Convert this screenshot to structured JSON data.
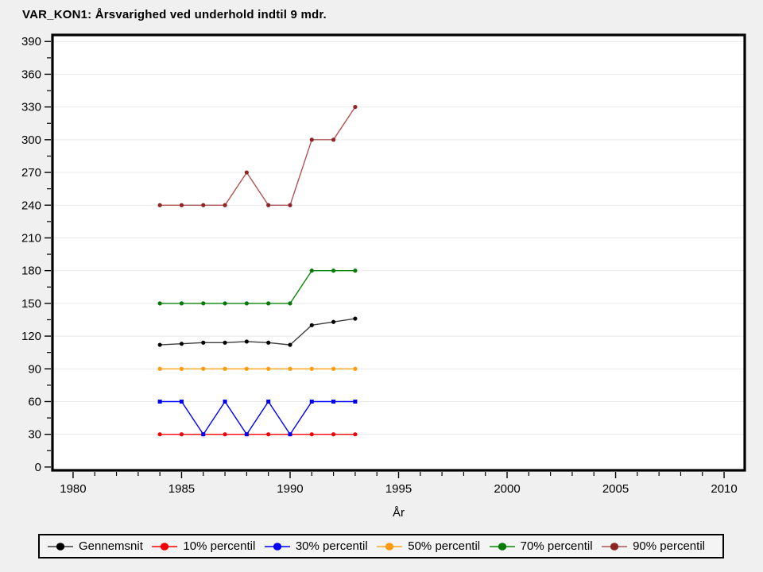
{
  "page": {
    "title": "VAR_KON1: Årsvarighed ved underhold indtil 9 mdr."
  },
  "colors": {
    "page_bg": "#f0f0f0",
    "plot_bg": "#ffffff",
    "grid": "#e9e9e9",
    "axis": "#000000",
    "legend_bg": "#f4f4f4",
    "legend_border": "#000000"
  },
  "chart_data": {
    "type": "line",
    "title": "VAR_KON1: Årsvarighed ved underhold indtil 9 mdr.",
    "xlabel": "År",
    "ylabel": "",
    "x_axis": {
      "label": "År",
      "min": 1979.05,
      "max": 2010.95,
      "major_ticks": [
        1980,
        1985,
        1990,
        1995,
        2000,
        2005,
        2010
      ],
      "minor_tick_step": 1
    },
    "y_axis": {
      "label": "",
      "min": -3,
      "max": 396,
      "major_ticks": [
        0,
        30,
        60,
        90,
        120,
        150,
        180,
        210,
        240,
        270,
        300,
        330,
        360,
        390
      ],
      "minor_tick_step": 15,
      "grid": true
    },
    "x": [
      1984,
      1985,
      1986,
      1987,
      1988,
      1989,
      1990,
      1991,
      1992,
      1993
    ],
    "series": [
      {
        "name": "Gennemsnit",
        "line_color": "#3c3c3c",
        "marker_color": "#000000",
        "marker": "circle",
        "values": [
          112,
          113,
          114,
          114,
          115,
          114,
          112,
          130,
          133,
          136
        ]
      },
      {
        "name": "10% percentil",
        "line_color": "#ff0000",
        "marker_color": "#f00000",
        "marker": "circle",
        "values": [
          30,
          30,
          30,
          30,
          30,
          30,
          30,
          30,
          30,
          30
        ]
      },
      {
        "name": "30% percentil",
        "line_color": "#0000ff",
        "marker_color": "#0000f0",
        "marker": "square",
        "values": [
          60,
          60,
          30,
          60,
          30,
          60,
          30,
          60,
          60,
          60
        ]
      },
      {
        "name": "50% percentil",
        "line_color": "#ffa51e",
        "marker_color": "#fb9c12",
        "marker": "circle",
        "values": [
          90,
          90,
          90,
          90,
          90,
          90,
          90,
          90,
          90,
          90
        ]
      },
      {
        "name": "70% percentil",
        "line_color": "#0b860b",
        "marker_color": "#077907",
        "marker": "circle",
        "values": [
          150,
          150,
          150,
          150,
          150,
          150,
          150,
          180,
          180,
          180
        ]
      },
      {
        "name": "90% percentil",
        "line_color": "#b15353",
        "marker_color": "#8e2626",
        "marker": "circle",
        "values": [
          240,
          240,
          240,
          240,
          270,
          240,
          240,
          300,
          300,
          330
        ]
      }
    ],
    "legend_position": "bottom",
    "grid": "horizontal-major-only"
  }
}
